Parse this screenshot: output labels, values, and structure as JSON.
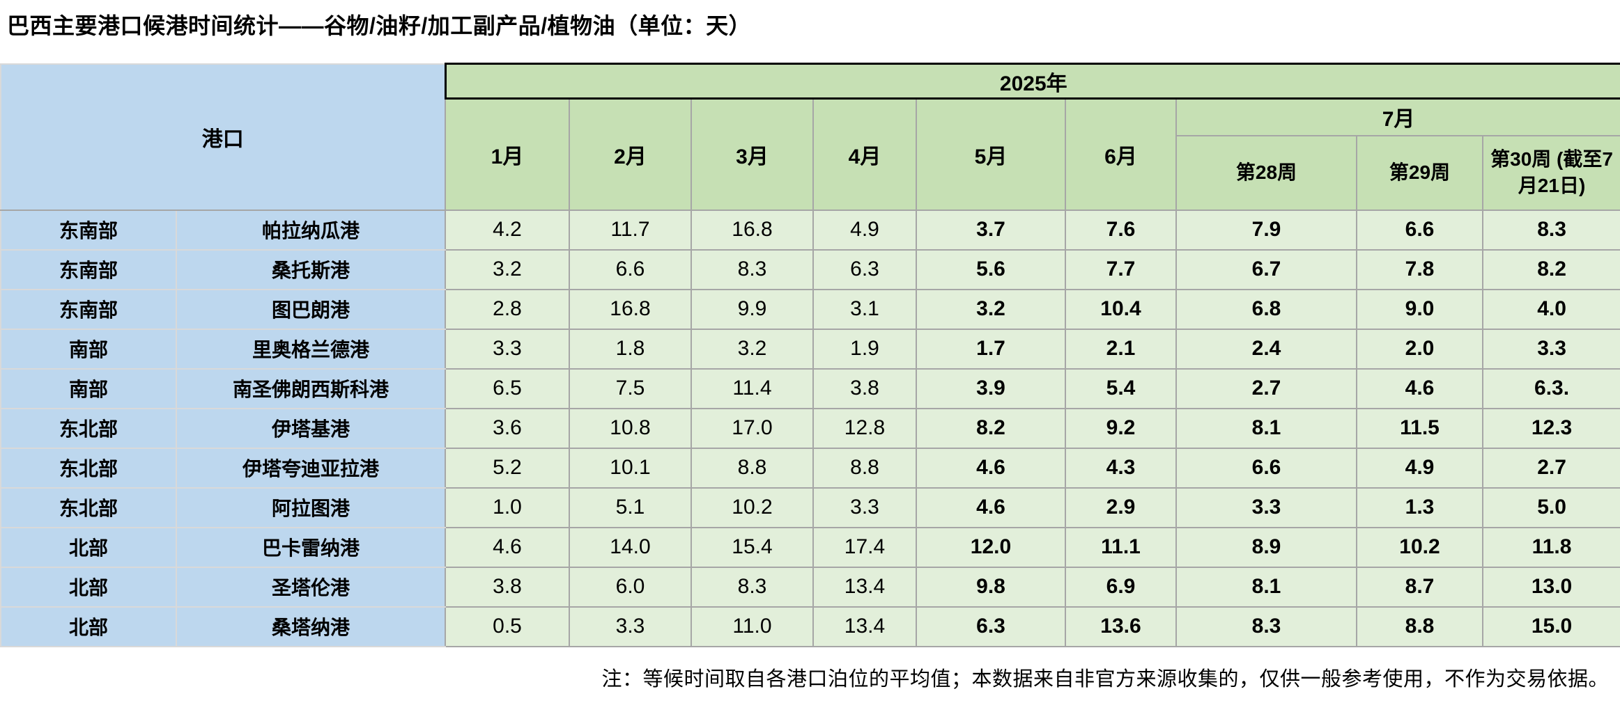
{
  "title": "巴西主要港口候港时间统计——谷物/油籽/加工副产品/植物油（单位：天）",
  "colors": {
    "header_green": "#c6e0b4",
    "cell_green": "#e2efda",
    "header_blue": "#bdd7ee",
    "grid_gray": "#a6a6a6",
    "blue_grid": "#d9d9d9",
    "frame_black": "#000000"
  },
  "table": {
    "port_header": "港口",
    "year_header": "2025年",
    "month_headers": [
      "1月",
      "2月",
      "3月",
      "4月",
      "5月",
      "6月"
    ],
    "july_header": "7月",
    "week_headers": [
      "第28周",
      "第29周",
      "第30周 (截至7月21日)"
    ],
    "rows": [
      {
        "region": "东南部",
        "port": "帕拉纳瓜港",
        "values": [
          "4.2",
          "11.7",
          "16.8",
          "4.9",
          "3.7",
          "7.6",
          "7.9",
          "6.6",
          "8.3"
        ]
      },
      {
        "region": "东南部",
        "port": "桑托斯港",
        "values": [
          "3.2",
          "6.6",
          "8.3",
          "6.3",
          "5.6",
          "7.7",
          "6.7",
          "7.8",
          "8.2"
        ]
      },
      {
        "region": "东南部",
        "port": "图巴朗港",
        "values": [
          "2.8",
          "16.8",
          "9.9",
          "3.1",
          "3.2",
          "10.4",
          "6.8",
          "9.0",
          "4.0"
        ]
      },
      {
        "region": "南部",
        "port": "里奥格兰德港",
        "values": [
          "3.3",
          "1.8",
          "3.2",
          "1.9",
          "1.7",
          "2.1",
          "2.4",
          "2.0",
          "3.3"
        ]
      },
      {
        "region": "南部",
        "port": "南圣佛朗西斯科港",
        "values": [
          "6.5",
          "7.5",
          "11.4",
          "3.8",
          "3.9",
          "5.4",
          "2.7",
          "4.6",
          "6.3."
        ]
      },
      {
        "region": "东北部",
        "port": "伊塔基港",
        "values": [
          "3.6",
          "10.8",
          "17.0",
          "12.8",
          "8.2",
          "9.2",
          "8.1",
          "11.5",
          "12.3"
        ]
      },
      {
        "region": "东北部",
        "port": "伊塔夸迪亚拉港",
        "values": [
          "5.2",
          "10.1",
          "8.8",
          "8.8",
          "4.6",
          "4.3",
          "6.6",
          "4.9",
          "2.7"
        ]
      },
      {
        "region": "东北部",
        "port": "阿拉图港",
        "values": [
          "1.0",
          "5.1",
          "10.2",
          "3.3",
          "4.6",
          "2.9",
          "3.3",
          "1.3",
          "5.0"
        ]
      },
      {
        "region": "北部",
        "port": "巴卡雷纳港",
        "values": [
          "4.6",
          "14.0",
          "15.4",
          "17.4",
          "12.0",
          "11.1",
          "8.9",
          "10.2",
          "11.8"
        ]
      },
      {
        "region": "北部",
        "port": "圣塔伦港",
        "values": [
          "3.8",
          "6.0",
          "8.3",
          "13.4",
          "9.8",
          "6.9",
          "8.1",
          "8.7",
          "13.0"
        ]
      },
      {
        "region": "北部",
        "port": "桑塔纳港",
        "values": [
          "0.5",
          "3.3",
          "11.0",
          "13.4",
          "6.3",
          "13.6",
          "8.3",
          "8.8",
          "15.0"
        ]
      }
    ]
  },
  "note": "注：等候时间取自各港口泊位的平均值；本数据来自非官方来源收集的，仅供一般参考使用，不作为交易依据。"
}
